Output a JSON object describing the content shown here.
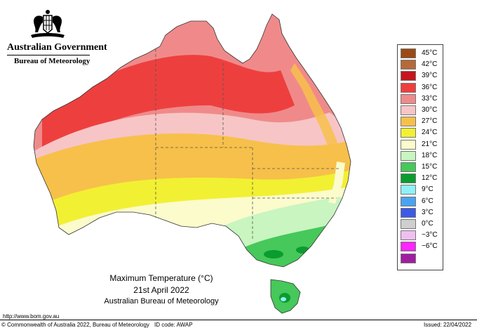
{
  "header": {
    "government": "Australian Government",
    "bureau": "Bureau of Meteorology"
  },
  "legend": [
    {
      "label": "45°C",
      "color": "#9b4a14"
    },
    {
      "label": "42°C",
      "color": "#b46a3a"
    },
    {
      "label": "39°C",
      "color": "#c4161c"
    },
    {
      "label": "36°C",
      "color": "#ee3f3f"
    },
    {
      "label": "33°C",
      "color": "#f08a8a"
    },
    {
      "label": "30°C",
      "color": "#f7c5c5"
    },
    {
      "label": "27°C",
      "color": "#f7c04a"
    },
    {
      "label": "24°C",
      "color": "#f2f032"
    },
    {
      "label": "21°C",
      "color": "#fbfbcc"
    },
    {
      "label": "18°C",
      "color": "#c8f5c0"
    },
    {
      "label": "15°C",
      "color": "#46c85a"
    },
    {
      "label": "12°C",
      "color": "#0a9c2e"
    },
    {
      "label": "9°C",
      "color": "#8ff0f7"
    },
    {
      "label": "6°C",
      "color": "#4aa3f0"
    },
    {
      "label": "3°C",
      "color": "#3c5ae6"
    },
    {
      "label": "0°C",
      "color": "#cfcfcf"
    },
    {
      "label": "−3°C",
      "color": "#efc0ef"
    },
    {
      "label": "−6°C",
      "color": "#ff26ff"
    },
    {
      "label": "",
      "color": "#a01ea0"
    }
  ],
  "caption": {
    "title": "Maximum Temperature (°C)",
    "date": "21st April 2022",
    "org": "Australian Bureau of Meteorology"
  },
  "footer": {
    "url": "http://www.bom.gov.au",
    "copyright": "© Commonwealth of Australia 2022, Bureau of Meteorology",
    "id_code": "ID code: AWAP",
    "issued": "Issued: 22/04/2022"
  }
}
